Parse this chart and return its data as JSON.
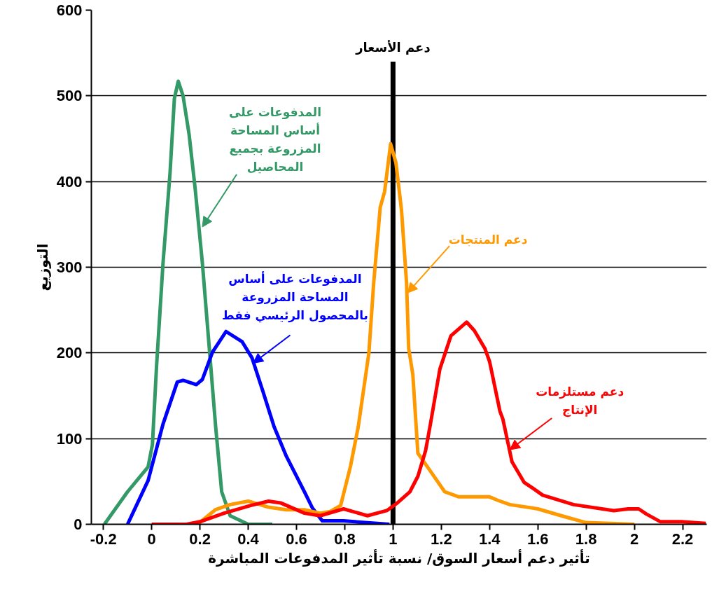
{
  "chart_data": {
    "type": "line",
    "xlabel": "تأثير دعم أسعار السوق/ نسبة تأثير المدفوعات المباشرة",
    "ylabel": "التوزيع",
    "xlim": [
      -0.25,
      2.3
    ],
    "xticks": [
      -0.2,
      0,
      0.2,
      0.4,
      0.6,
      0.8,
      1,
      1.2,
      1.4,
      1.6,
      1.8,
      2,
      2.2
    ],
    "ylim": [
      0,
      600
    ],
    "yticks": [
      0,
      100,
      200,
      300,
      400,
      500,
      600
    ],
    "grid": "y",
    "marker": "none",
    "line_style": "solid",
    "ref_lines": [
      {
        "axis": "x",
        "value": 1,
        "label": "دعم الأسعار",
        "color": "#000000"
      }
    ],
    "annotations": [
      {
        "text": "المدفوعات على\nأساس المساحة\nالمزروعة بجميع\nالمحاصيل",
        "x": 0.21,
        "y": 347
      },
      {
        "text": "المدفوعات على أساس\nالمساحة المزروعة\nبالمحصول الرئيسي فقط",
        "x": 0.42,
        "y": 188
      },
      {
        "text": "دعم المنتجات",
        "x": 1.06,
        "y": 270
      },
      {
        "text": "دعم مستلزمات\nالإنتاج",
        "x": 1.484,
        "y": 87
      }
    ],
    "series": [
      {
        "color": "#339966",
        "x": [
          -0.196,
          -0.1,
          -0.015,
          0.003,
          0.02,
          0.047,
          0.076,
          0.094,
          0.11,
          0.13,
          0.155,
          0.18,
          0.21,
          0.24,
          0.265,
          0.29,
          0.325,
          0.4,
          0.5
        ],
        "values": [
          0,
          38,
          67,
          93,
          184,
          305,
          410,
          497,
          517,
          500,
          455,
          392,
          305,
          201,
          114,
          38,
          10,
          0,
          0
        ]
      },
      {
        "color": "#0000ff",
        "x": [
          -0.1,
          -0.015,
          0.047,
          0.106,
          0.13,
          0.185,
          0.21,
          0.252,
          0.308,
          0.375,
          0.416,
          0.46,
          0.507,
          0.557,
          0.633,
          0.666,
          0.707,
          0.795,
          0.985
        ],
        "values": [
          0,
          51,
          117,
          166,
          168,
          163,
          169,
          201,
          225,
          213,
          194,
          156,
          114,
          80,
          38,
          19,
          4,
          4,
          0
        ]
      },
      {
        "color": "#ff9900",
        "x": [
          0.19,
          0.264,
          0.325,
          0.4,
          0.484,
          0.557,
          0.633,
          0.698,
          0.74,
          0.783,
          0.824,
          0.856,
          0.9,
          0.92,
          0.947,
          0.965,
          0.99,
          1.012,
          1.035,
          1.056,
          1.065,
          1.082,
          1.103,
          1.155,
          1.214,
          1.273,
          1.4,
          1.434,
          1.484,
          1.6,
          1.71,
          1.8,
          2.0
        ],
        "values": [
          0,
          17,
          23,
          27,
          20,
          17,
          17,
          13,
          15,
          22,
          68,
          114,
          200,
          282,
          370,
          388,
          444,
          422,
          367,
          282,
          205,
          175,
          83,
          62,
          38,
          32,
          32,
          28,
          23,
          18,
          9,
          2,
          0
        ]
      },
      {
        "color": "#ff0000",
        "x": [
          0,
          0.144,
          0.2,
          0.3,
          0.41,
          0.484,
          0.534,
          0.633,
          0.698,
          0.795,
          0.894,
          0.974,
          1.018,
          1.07,
          1.103,
          1.135,
          1.155,
          1.194,
          1.24,
          1.305,
          1.337,
          1.381,
          1.4,
          1.443,
          1.455,
          1.493,
          1.543,
          1.58,
          1.62,
          1.748,
          1.915,
          1.974,
          2.018,
          2.05,
          2.108,
          2.196,
          2.296
        ],
        "values": [
          0,
          0,
          3,
          13,
          22,
          27,
          25,
          13,
          10,
          18,
          10,
          16,
          25,
          38,
          56,
          86,
          117,
          181,
          220,
          236,
          226,
          205,
          190,
          132,
          123,
          73,
          49,
          42,
          34,
          23,
          16,
          18,
          18,
          12,
          3,
          3,
          1
        ]
      }
    ]
  }
}
